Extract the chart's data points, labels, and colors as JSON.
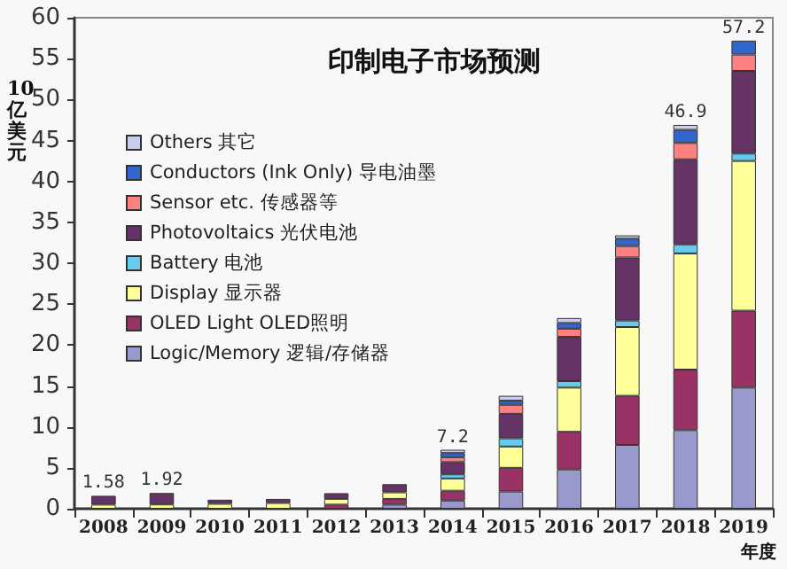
{
  "chart_data": {
    "type": "bar",
    "stacked": true,
    "title": "印制电子市场预测",
    "ylabel": "10亿美元",
    "xlabel": "年度",
    "categories": [
      "2008",
      "2009",
      "2010",
      "2011",
      "2012",
      "2013",
      "2014",
      "2015",
      "2016",
      "2017",
      "2018",
      "2019"
    ],
    "series": [
      {
        "name": "Logic/Memory 逻辑/存储器",
        "color": "#9999cc",
        "values": [
          null,
          null,
          null,
          null,
          null,
          0.5,
          1.0,
          2.1,
          4.8,
          7.8,
          9.6,
          14.8
        ]
      },
      {
        "name": "OLED Light OLED照明",
        "color": "#993366",
        "values": [
          null,
          null,
          null,
          null,
          0.5,
          0.7,
          1.2,
          2.9,
          4.6,
          6.0,
          7.4,
          9.4
        ]
      },
      {
        "name": "Display 显示器",
        "color": "#ffff99",
        "values": [
          0.5,
          0.52,
          0.6,
          0.7,
          0.7,
          0.8,
          1.5,
          2.6,
          5.4,
          8.4,
          14.2,
          18.3
        ]
      },
      {
        "name": "Battery 电池",
        "color": "#66ccee",
        "values": [
          null,
          null,
          null,
          null,
          null,
          null,
          0.5,
          1.0,
          0.8,
          0.8,
          1.1,
          0.9
        ]
      },
      {
        "name": "Photovoltaics 光伏电池",
        "color": "#663366",
        "values": [
          1.08,
          1.4,
          0.5,
          0.5,
          0.7,
          1.0,
          1.5,
          3.0,
          5.4,
          7.7,
          10.4,
          10.1
        ]
      },
      {
        "name": "Sensor etc. 传感器等",
        "color": "#ff8080",
        "values": [
          null,
          null,
          null,
          null,
          null,
          null,
          0.6,
          1.1,
          1.0,
          1.4,
          2.0,
          2.0
        ]
      },
      {
        "name": "Conductors (Ink Only) 导电油墨",
        "color": "#3366cc",
        "values": [
          null,
          null,
          null,
          null,
          null,
          null,
          0.5,
          0.5,
          0.7,
          0.9,
          1.6,
          1.7
        ]
      },
      {
        "name": "Others 其它",
        "color": "#ccccee",
        "values": [
          null,
          null,
          null,
          null,
          null,
          null,
          0.4,
          0.6,
          0.6,
          0.4,
          0.6,
          null
        ]
      }
    ],
    "totals": [
      "1.58",
      "1.92",
      null,
      null,
      null,
      null,
      "7.2",
      null,
      null,
      null,
      "46.9",
      "57.2"
    ],
    "ylim": [
      0,
      60
    ],
    "yticks": [
      0,
      5,
      10,
      15,
      20,
      25,
      30,
      35,
      40,
      45,
      50,
      55,
      60
    ],
    "grid": false,
    "legend": "top left"
  }
}
